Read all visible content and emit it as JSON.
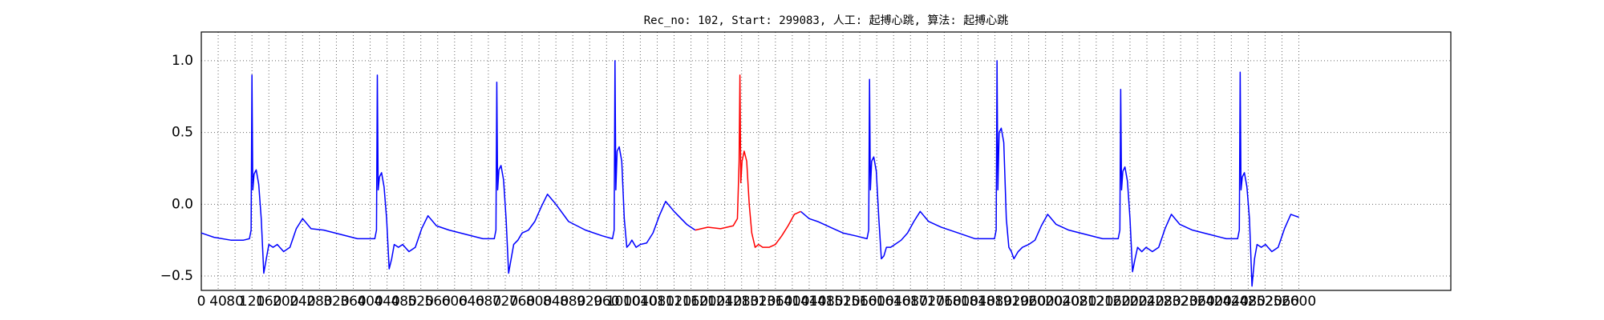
{
  "chart_data": {
    "type": "line",
    "title": "Rec_no: 102, Start: 299083, 人工: 起搏心跳, 算法: 起搏心跳",
    "xlim": [
      0,
      2960
    ],
    "ylim": [
      -0.6,
      1.2
    ],
    "xticks": [
      0,
      40,
      80,
      120,
      160,
      200,
      240,
      280,
      320,
      360,
      400,
      440,
      480,
      520,
      560,
      600,
      640,
      680,
      720,
      760,
      800,
      840,
      880,
      920,
      960,
      1000,
      1040,
      1080,
      1120,
      1160,
      1200,
      1240,
      1280,
      1320,
      1360,
      1400,
      1440,
      1480,
      1520,
      1560,
      1600,
      1640,
      1680,
      1720,
      1760,
      1800,
      1840,
      1880,
      1920,
      1960,
      2000,
      2040,
      2080,
      2120,
      2160,
      2200,
      2240,
      2280,
      2320,
      2360,
      2400,
      2440,
      2480,
      2520,
      2560,
      2600
    ],
    "yticks": [
      {
        "value": -0.5,
        "label": "−0.5"
      },
      {
        "value": 0,
        "label": "0.0"
      },
      0.5,
      {
        "value": 1,
        "label": "1.0"
      }
    ],
    "grid": true,
    "series": [
      {
        "color": "#0000ff",
        "x": [
          0,
          30,
          70,
          100,
          114,
          118,
          120,
          122,
          125,
          130,
          136,
          142,
          148,
          154,
          160,
          170,
          180,
          195,
          210,
          225,
          240,
          260,
          290,
          330,
          370,
          411,
          415,
          417,
          419,
          422,
          427,
          433,
          439,
          445,
          451,
          457,
          467,
          477,
          492,
          507,
          522,
          537,
          557,
          587,
          627,
          667,
          694,
          698,
          700,
          702,
          705,
          710,
          716,
          722,
          728,
          734,
          740,
          750,
          760,
          775,
          790,
          805,
          820,
          840,
          870,
          910,
          950,
          974,
          978,
          980,
          982,
          985,
          990,
          996,
          1002,
          1008,
          1014,
          1020,
          1030,
          1040,
          1055,
          1070,
          1085,
          1100,
          1120,
          1150,
          1170,
          1300,
          1420,
          1440,
          1460,
          1490,
          1520,
          1550,
          1577,
          1581,
          1583,
          1585,
          1588,
          1593,
          1599,
          1605,
          1611,
          1617,
          1623,
          1633,
          1643,
          1658,
          1673,
          1688,
          1703,
          1723,
          1753,
          1793,
          1833,
          1879,
          1883,
          1885,
          1887,
          1890,
          1895,
          1901,
          1907,
          1913,
          1919,
          1925,
          1935,
          1945,
          1960,
          1975,
          1990,
          2005,
          2025,
          2055,
          2095,
          2135,
          2172,
          2176,
          2178,
          2180,
          2183,
          2188,
          2194,
          2200,
          2206,
          2212,
          2218,
          2228,
          2238,
          2253,
          2268,
          2283,
          2298,
          2318,
          2348,
          2388,
          2428,
          2455,
          2459,
          2461,
          2463,
          2466,
          2471,
          2477,
          2483,
          2489,
          2495,
          2501,
          2511,
          2521,
          2536,
          2551,
          2566,
          2581,
          2590,
          2600
        ],
        "values": [
          -0.2,
          -0.23,
          -0.25,
          -0.25,
          -0.24,
          -0.18,
          0.9,
          0.1,
          0.21,
          0.24,
          0.14,
          -0.1,
          -0.48,
          -0.38,
          -0.28,
          -0.3,
          -0.28,
          -0.33,
          -0.3,
          -0.17,
          -0.1,
          -0.17,
          -0.18,
          -0.21,
          -0.24,
          -0.24,
          -0.18,
          0.9,
          0.1,
          0.19,
          0.22,
          0.12,
          -0.1,
          -0.45,
          -0.38,
          -0.28,
          -0.3,
          -0.28,
          -0.33,
          -0.3,
          -0.17,
          -0.08,
          -0.15,
          -0.18,
          -0.21,
          -0.24,
          -0.24,
          -0.18,
          0.85,
          0.1,
          0.24,
          0.27,
          0.17,
          -0.1,
          -0.48,
          -0.38,
          -0.28,
          -0.25,
          -0.2,
          -0.18,
          -0.12,
          -0.02,
          0.07,
          0,
          -0.12,
          -0.18,
          -0.22,
          -0.24,
          -0.18,
          1.0,
          0.1,
          0.37,
          0.4,
          0.3,
          -0.1,
          -0.3,
          -0.28,
          -0.25,
          -0.3,
          -0.28,
          -0.27,
          -0.2,
          -0.08,
          0.02,
          -0.05,
          -0.14,
          -0.18,
          null,
          -0.05,
          -0.1,
          -0.12,
          -0.16,
          -0.2,
          -0.22,
          -0.24,
          -0.18,
          0.87,
          0.1,
          0.3,
          0.33,
          0.23,
          -0.1,
          -0.38,
          -0.36,
          -0.3,
          -0.3,
          -0.28,
          -0.25,
          -0.2,
          -0.12,
          -0.05,
          -0.12,
          -0.16,
          -0.2,
          -0.24,
          -0.24,
          -0.18,
          1.0,
          0.1,
          0.5,
          0.53,
          0.43,
          -0.1,
          -0.3,
          -0.33,
          -0.38,
          -0.33,
          -0.3,
          -0.28,
          -0.25,
          -0.15,
          -0.07,
          -0.14,
          -0.18,
          -0.21,
          -0.24,
          -0.24,
          -0.18,
          0.8,
          0.1,
          0.23,
          0.26,
          0.16,
          -0.1,
          -0.47,
          -0.38,
          -0.3,
          -0.33,
          -0.3,
          -0.33,
          -0.3,
          -0.17,
          -0.07,
          -0.14,
          -0.18,
          -0.21,
          -0.24,
          -0.24,
          -0.18,
          0.92,
          0.1,
          0.19,
          0.22,
          0.12,
          -0.1,
          -0.57,
          -0.38,
          -0.28,
          -0.3,
          -0.28,
          -0.33,
          -0.3,
          -0.17,
          -0.07,
          -0.08,
          -0.09
        ]
      },
      {
        "color": "#ff0000",
        "x": [
          1170,
          1200,
          1230,
          1260,
          1270,
          1274,
          1276,
          1278,
          1281,
          1286,
          1292,
          1298,
          1304,
          1312,
          1320,
          1330,
          1345,
          1360,
          1375,
          1390,
          1405,
          1420
        ],
        "values": [
          -0.18,
          -0.16,
          -0.17,
          -0.15,
          -0.1,
          0.3,
          0.9,
          0.15,
          0.3,
          0.37,
          0.3,
          0,
          -0.2,
          -0.3,
          -0.28,
          -0.3,
          -0.3,
          -0.28,
          -0.22,
          -0.15,
          -0.07,
          -0.05
        ]
      }
    ]
  }
}
